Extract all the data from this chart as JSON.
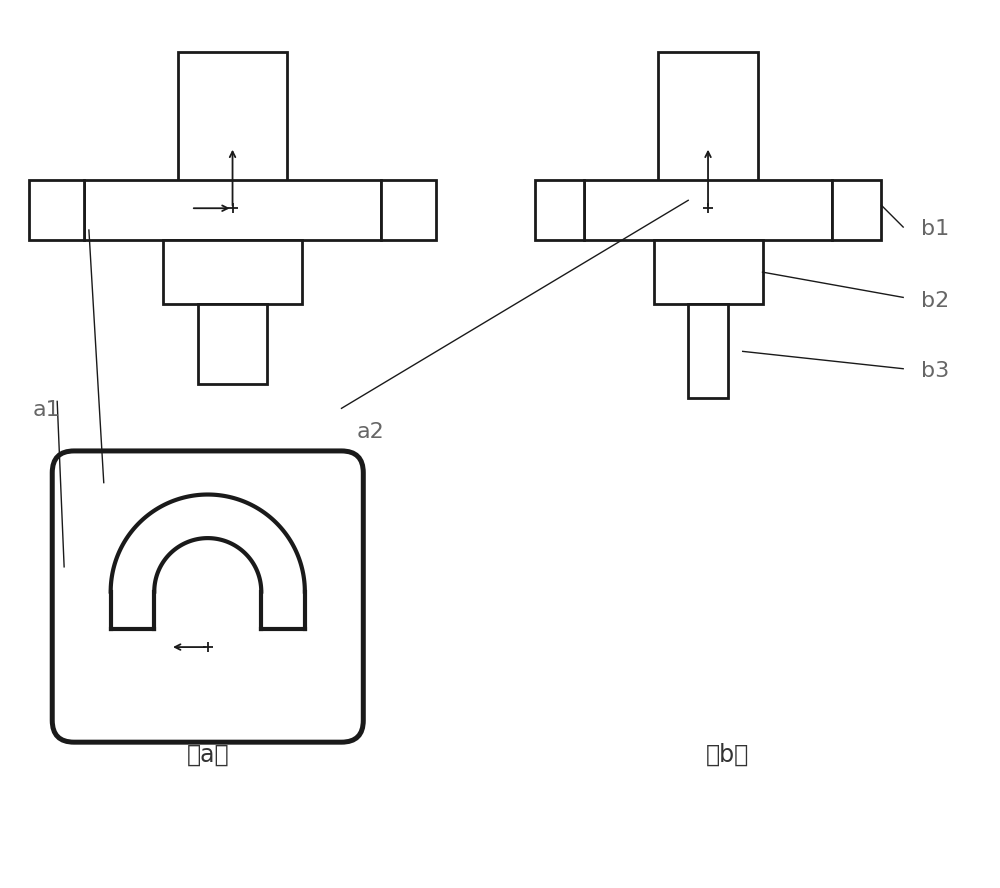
{
  "bg_color": "#ffffff",
  "line_color": "#1a1a1a",
  "line_width": 2.0,
  "fig_width": 10.0,
  "fig_height": 8.88,
  "label_a1": "a1",
  "label_a2": "a2",
  "label_b1": "b1",
  "label_b2": "b2",
  "label_b3": "b3",
  "label_a": "（a）",
  "label_b": "（b）",
  "text_color": "#666666"
}
